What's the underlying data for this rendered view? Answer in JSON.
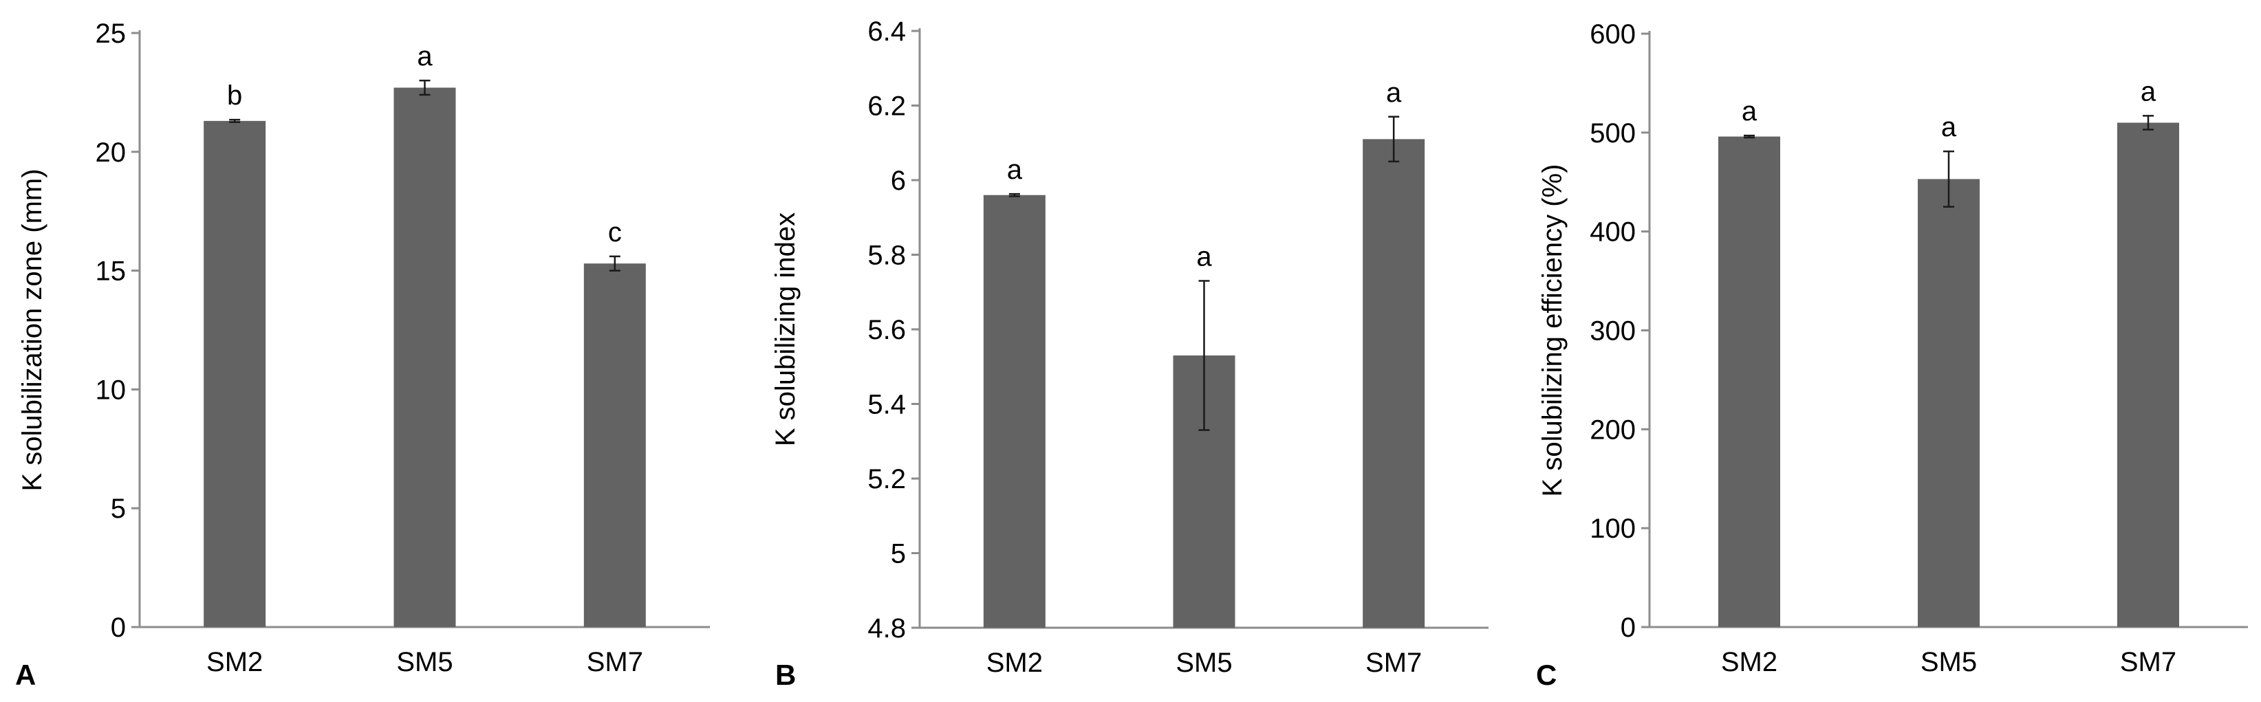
{
  "colors": {
    "bar": "#636363",
    "axis": "#8c8c8c",
    "text": "#000000"
  },
  "chart_data": [
    {
      "type": "bar",
      "panel_label": "A",
      "title": "",
      "xlabel": "",
      "ylabel": "K solubilization zone (mm)",
      "categories": [
        "SM2",
        "SM5",
        "SM7"
      ],
      "values": [
        21.3,
        22.7,
        15.3
      ],
      "errors": [
        0.05,
        0.3,
        0.3
      ],
      "significance": [
        "b",
        "a",
        "c"
      ],
      "ylim": [
        0,
        25
      ],
      "yticks": [
        0,
        5,
        10,
        15,
        20,
        25
      ],
      "ytick_labels": [
        "0",
        "5",
        "10",
        "15",
        "20",
        "25"
      ],
      "grid": false,
      "legend": "none"
    },
    {
      "type": "bar",
      "panel_label": "B",
      "title": "",
      "xlabel": "",
      "ylabel": "K solubilizing index",
      "categories": [
        "SM2",
        "SM5",
        "SM7"
      ],
      "values": [
        5.96,
        5.53,
        6.11
      ],
      "errors": [
        0.003,
        0.2,
        0.06
      ],
      "significance": [
        "a",
        "a",
        "a"
      ],
      "ylim": [
        4.8,
        6.4
      ],
      "yticks": [
        4.8,
        5.0,
        5.2,
        5.4,
        5.6,
        5.8,
        6.0,
        6.2,
        6.4
      ],
      "ytick_labels": [
        "4.8",
        "5",
        "5.2",
        "5.4",
        "5.6",
        "5.8",
        "6",
        "6.2",
        "6.4"
      ],
      "grid": false,
      "legend": "none"
    },
    {
      "type": "bar",
      "panel_label": "C",
      "title": "",
      "xlabel": "",
      "ylabel": "K solubilizing efficiency (%)",
      "categories": [
        "SM2",
        "SM5",
        "SM7"
      ],
      "values": [
        496,
        453,
        510
      ],
      "errors": [
        1,
        28,
        7
      ],
      "significance": [
        "a",
        "a",
        "a"
      ],
      "ylim": [
        0,
        600
      ],
      "yticks": [
        0,
        100,
        200,
        300,
        400,
        500,
        600
      ],
      "ytick_labels": [
        "0",
        "100",
        "200",
        "300",
        "400",
        "500",
        "600"
      ],
      "grid": false,
      "legend": "none"
    }
  ]
}
